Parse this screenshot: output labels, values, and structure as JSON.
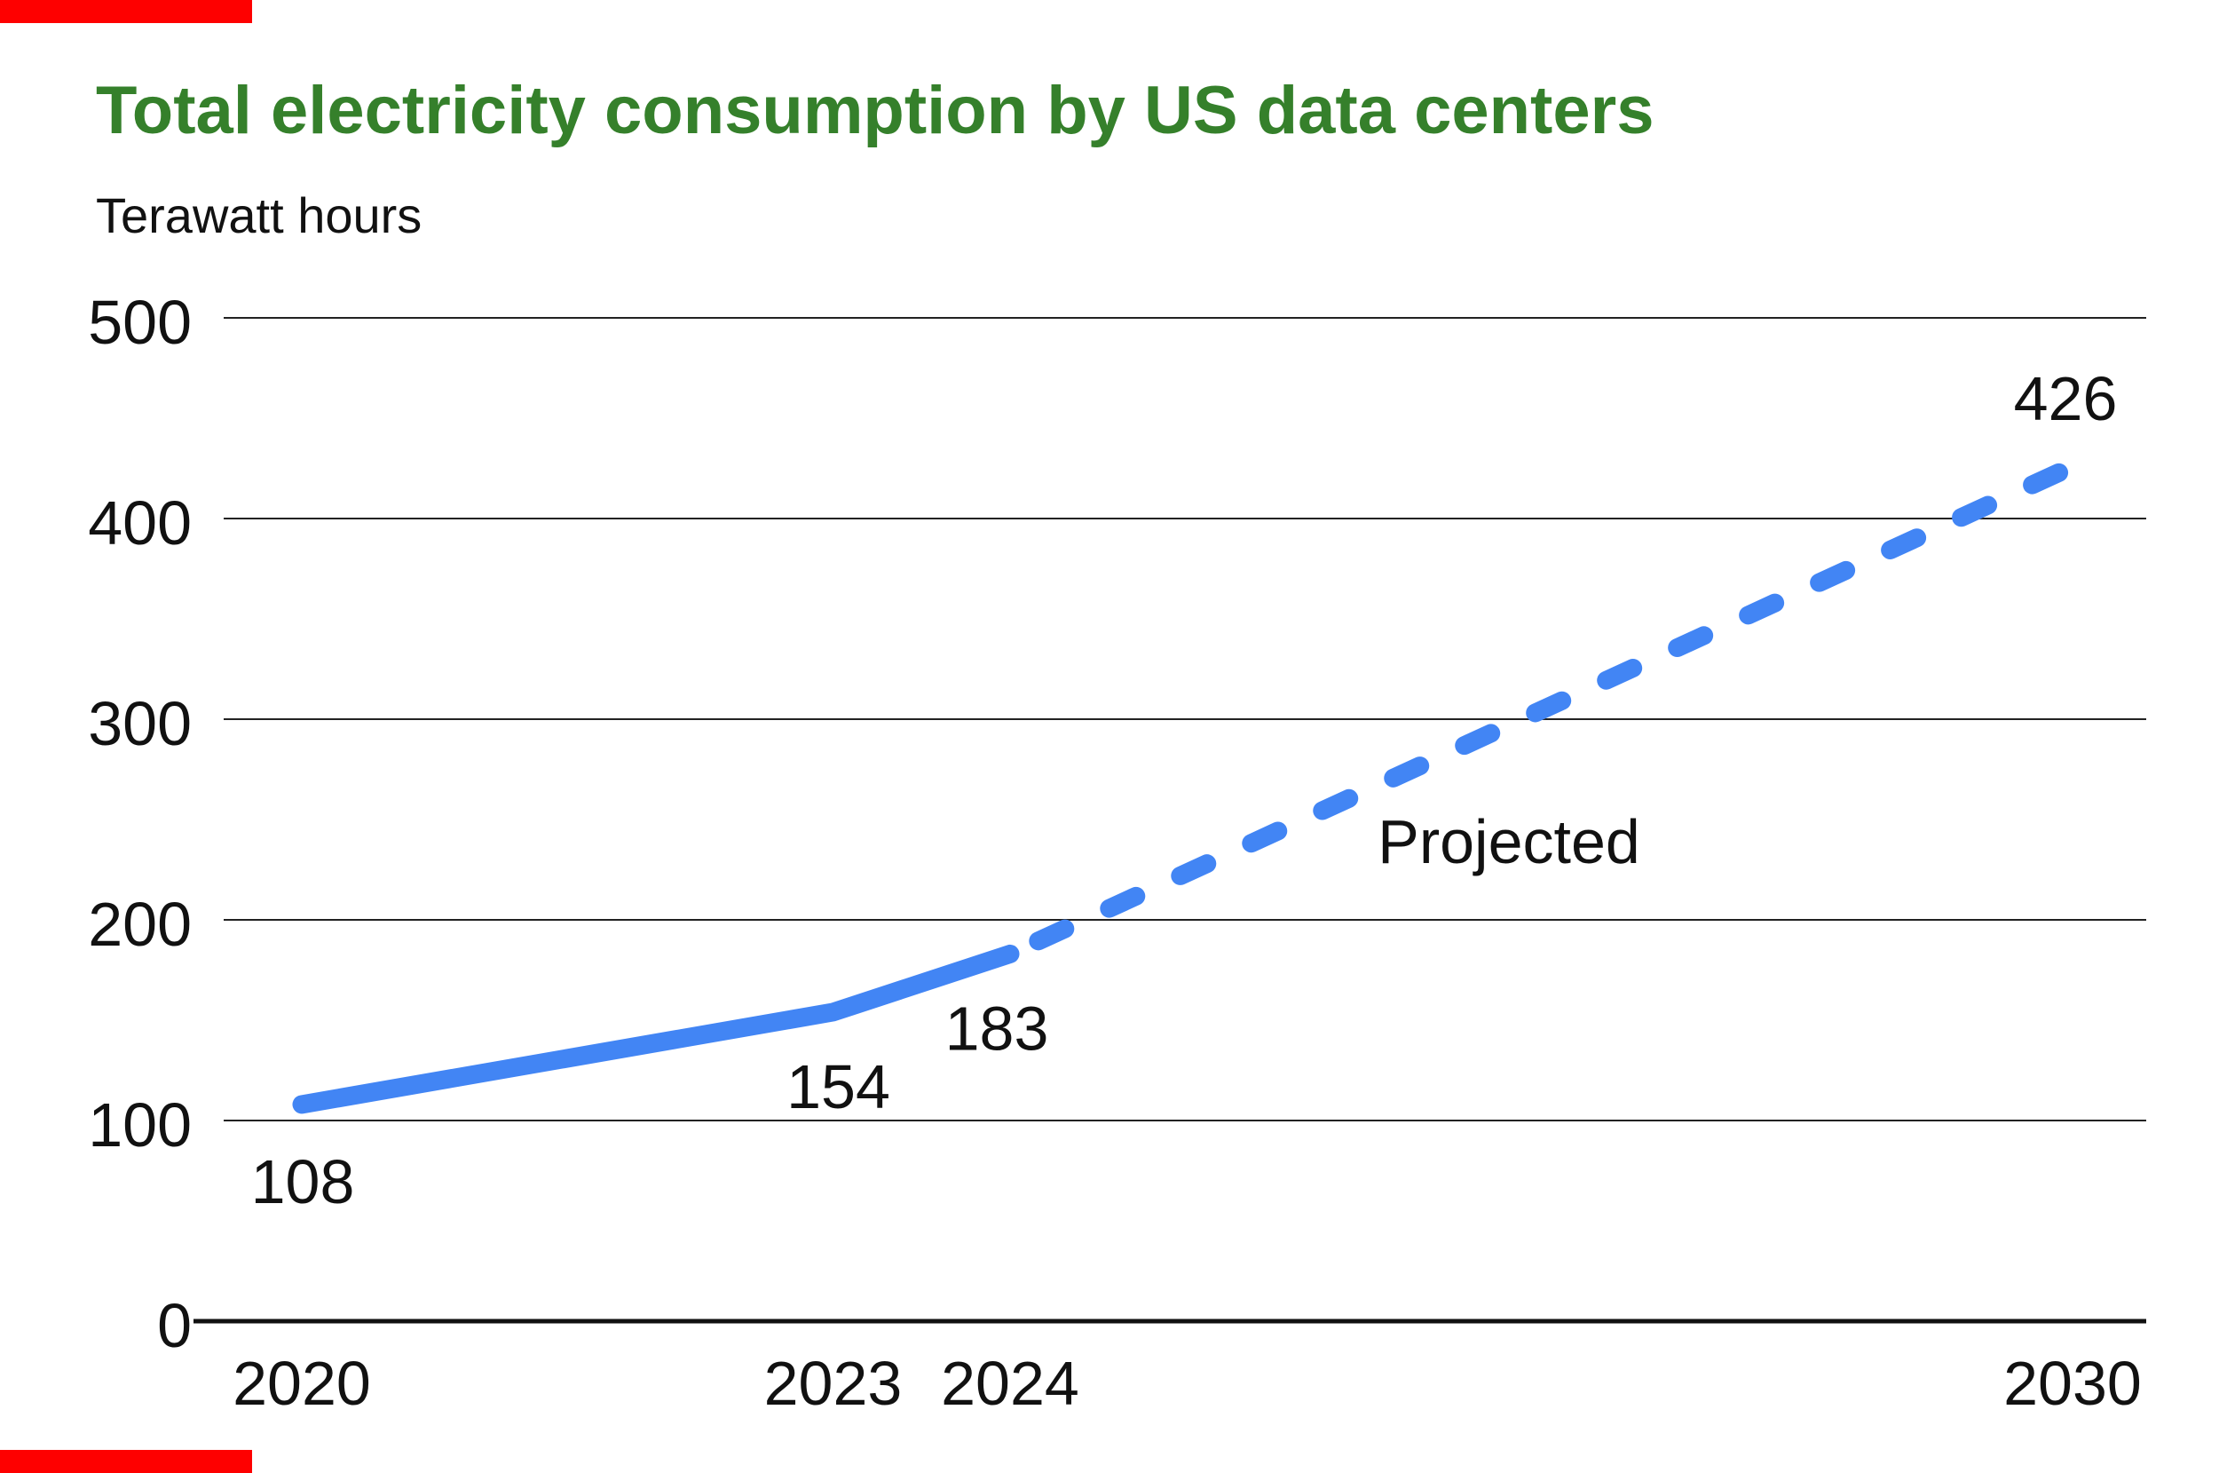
{
  "page": {
    "background_color": "#ffffff",
    "mask_color": "#fe0000"
  },
  "header": {
    "title": "Total electricity consumption by US data centers",
    "title_color": "#35802b",
    "unit_label": "Terawatt hours"
  },
  "chart_data": {
    "type": "line",
    "title": "Total electricity consumption by US data centers",
    "ylabel": "Terawatt hours",
    "x": [
      2020,
      2023,
      2024,
      2030
    ],
    "x_tick_labels": [
      "2020",
      "2023",
      "2024",
      "2030"
    ],
    "series": [
      {
        "values": [
          108,
          154,
          183,
          426
        ],
        "color": "#4285f4",
        "solid_until_x": 2024,
        "dashed_after_x": 2024
      }
    ],
    "data_labels": [
      "108",
      "154",
      "183",
      "426"
    ],
    "annotation": "Projected",
    "ylim": [
      0,
      500
    ],
    "yticks": [
      0,
      100,
      200,
      300,
      400,
      500
    ],
    "ytick_labels": [
      "0",
      "100",
      "200",
      "300",
      "400",
      "500"
    ],
    "grid": "horizontal gridlines only, zero baseline emphasized",
    "legend": "none",
    "line_color": "#4285f4",
    "text_color": "#111111"
  }
}
